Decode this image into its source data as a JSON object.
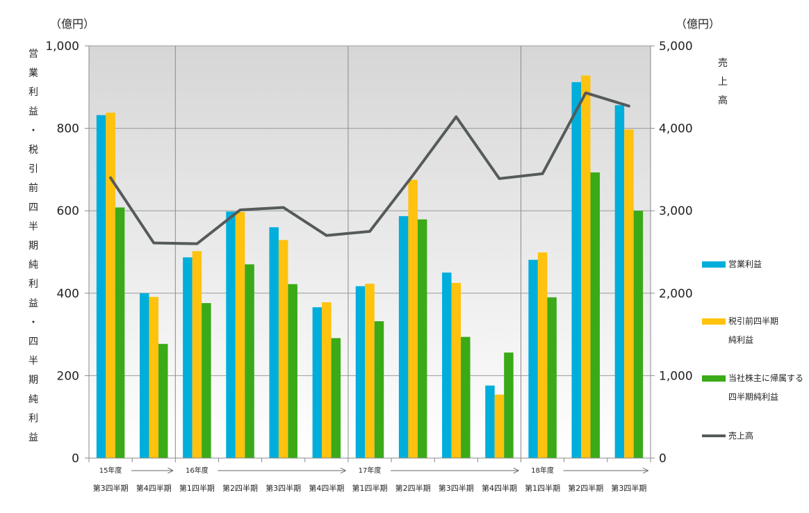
{
  "chart_data": {
    "type": "bar",
    "title": "",
    "left_axis": {
      "unit_label": "（億円）",
      "label": "営業利益・税引前四半期純利益・四半期純利益",
      "ticks": [
        "0",
        "200",
        "400",
        "600",
        "800",
        "1,000"
      ],
      "ylim": [
        0,
        1000
      ]
    },
    "right_axis": {
      "unit_label": "（億円）",
      "label": "売上高",
      "ticks": [
        "0",
        "1,000",
        "2,000",
        "3,000",
        "4,000",
        "5,000"
      ],
      "ylim": [
        0,
        5000
      ]
    },
    "categories": [
      "第3四半期",
      "第4四半期",
      "第1四半期",
      "第2四半期",
      "第3四半期",
      "第4四半期",
      "第1四半期",
      "第2四半期",
      "第3四半期",
      "第4四半期",
      "第1四半期",
      "第2四半期",
      "第3四半期"
    ],
    "fiscal_years": [
      {
        "label": "15年度",
        "start_index": 0,
        "arrow_end_index": 1
      },
      {
        "label": "16年度",
        "start_index": 2,
        "arrow_end_index": 5
      },
      {
        "label": "17年度",
        "start_index": 6,
        "arrow_end_index": 9
      },
      {
        "label": "18年度",
        "start_index": 10,
        "arrow_end_index": 12
      }
    ],
    "series": [
      {
        "name": "営業利益",
        "type": "bar",
        "axis": "left",
        "color": "#00aedb",
        "values": [
          832,
          400,
          487,
          598,
          560,
          366,
          417,
          587,
          450,
          176,
          481,
          912,
          856
        ]
      },
      {
        "name": "税引前四半期純利益",
        "type": "bar",
        "axis": "left",
        "color": "#ffc20e",
        "values": [
          838,
          391,
          502,
          597,
          529,
          378,
          423,
          675,
          425,
          154,
          499,
          928,
          797
        ]
      },
      {
        "name": "当社株主に帰属する四半期純利益",
        "type": "bar",
        "axis": "left",
        "color": "#3aaa18",
        "values": [
          608,
          277,
          376,
          470,
          422,
          291,
          332,
          579,
          294,
          256,
          390,
          693,
          600
        ]
      },
      {
        "name": "売上高",
        "type": "line",
        "axis": "right",
        "color": "#555a5a",
        "values": [
          3400,
          2610,
          2600,
          3010,
          3040,
          2700,
          2750,
          3430,
          4140,
          3390,
          3450,
          4430,
          4270
        ]
      }
    ],
    "legend": [
      {
        "lines": [
          "営業利益"
        ],
        "color": "#00aedb",
        "kind": "box"
      },
      {
        "lines": [
          "税引前四半期",
          "純利益"
        ],
        "color": "#ffc20e",
        "kind": "box"
      },
      {
        "lines": [
          "当社株主に帰属する",
          "四半期純利益"
        ],
        "color": "#3aaa18",
        "kind": "box"
      },
      {
        "lines": [
          "売上高"
        ],
        "color": "#555a5a",
        "kind": "line"
      }
    ],
    "legend_position": "right",
    "grid": true
  }
}
